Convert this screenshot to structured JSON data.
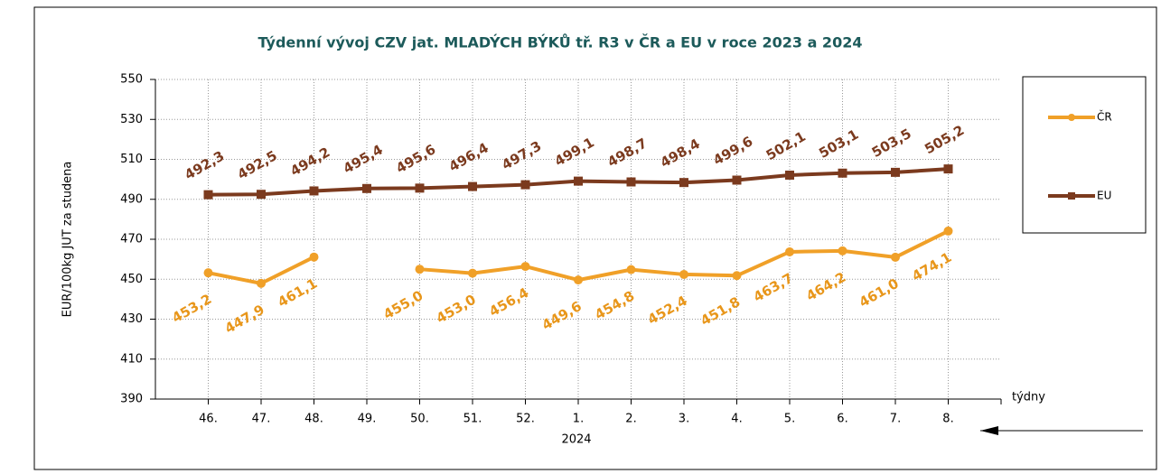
{
  "chart_data": {
    "type": "line",
    "title": "Týdenní  vývoj CZV jat. MLADÝCH BÝKŮ tř. R3  v ČR a EU v roce 2023 a 2024",
    "y_label": "EUR/100kg  JUT za studena",
    "x_label": "týdny",
    "year_label": "2024",
    "categories": [
      "46.",
      "47.",
      "48.",
      "49.",
      "50.",
      "51.",
      "52.",
      "1.",
      "2.",
      "3.",
      "4.",
      "5.",
      "6.",
      "7.",
      "8."
    ],
    "series": [
      {
        "name": "ČR",
        "color": "#f0a028",
        "label_color": "#e8961a",
        "marker": "circle",
        "values": [
          453.2,
          447.9,
          461.1,
          null,
          455.0,
          453.0,
          456.4,
          449.6,
          454.8,
          452.4,
          451.8,
          463.7,
          464.2,
          461.0,
          474.1
        ],
        "value_labels": [
          "453,2",
          "447,9",
          "461,1",
          null,
          "455,0",
          "453,0",
          "456,4",
          "449,6",
          "454,8",
          "452,4",
          "451,8",
          "463,7",
          "464,2",
          "461,0",
          "474,1"
        ]
      },
      {
        "name": "EU",
        "color": "#7b3a1e",
        "label_color": "#7b3a1e",
        "marker": "square",
        "values": [
          492.3,
          492.5,
          494.2,
          495.4,
          495.6,
          496.4,
          497.3,
          499.1,
          498.7,
          498.4,
          499.6,
          502.1,
          503.1,
          503.5,
          505.2
        ],
        "value_labels": [
          "492,3",
          "492,5",
          "494,2",
          "495,4",
          "495,6",
          "496,4",
          "497,3",
          "499,1",
          "498,7",
          "498,4",
          "499,6",
          "502,1",
          "503,1",
          "503,5",
          "505,2"
        ]
      }
    ],
    "ylim": [
      390,
      550
    ],
    "yticks": [
      390,
      410,
      430,
      450,
      470,
      490,
      510,
      530,
      550
    ],
    "grid": true,
    "legend": "right"
  }
}
